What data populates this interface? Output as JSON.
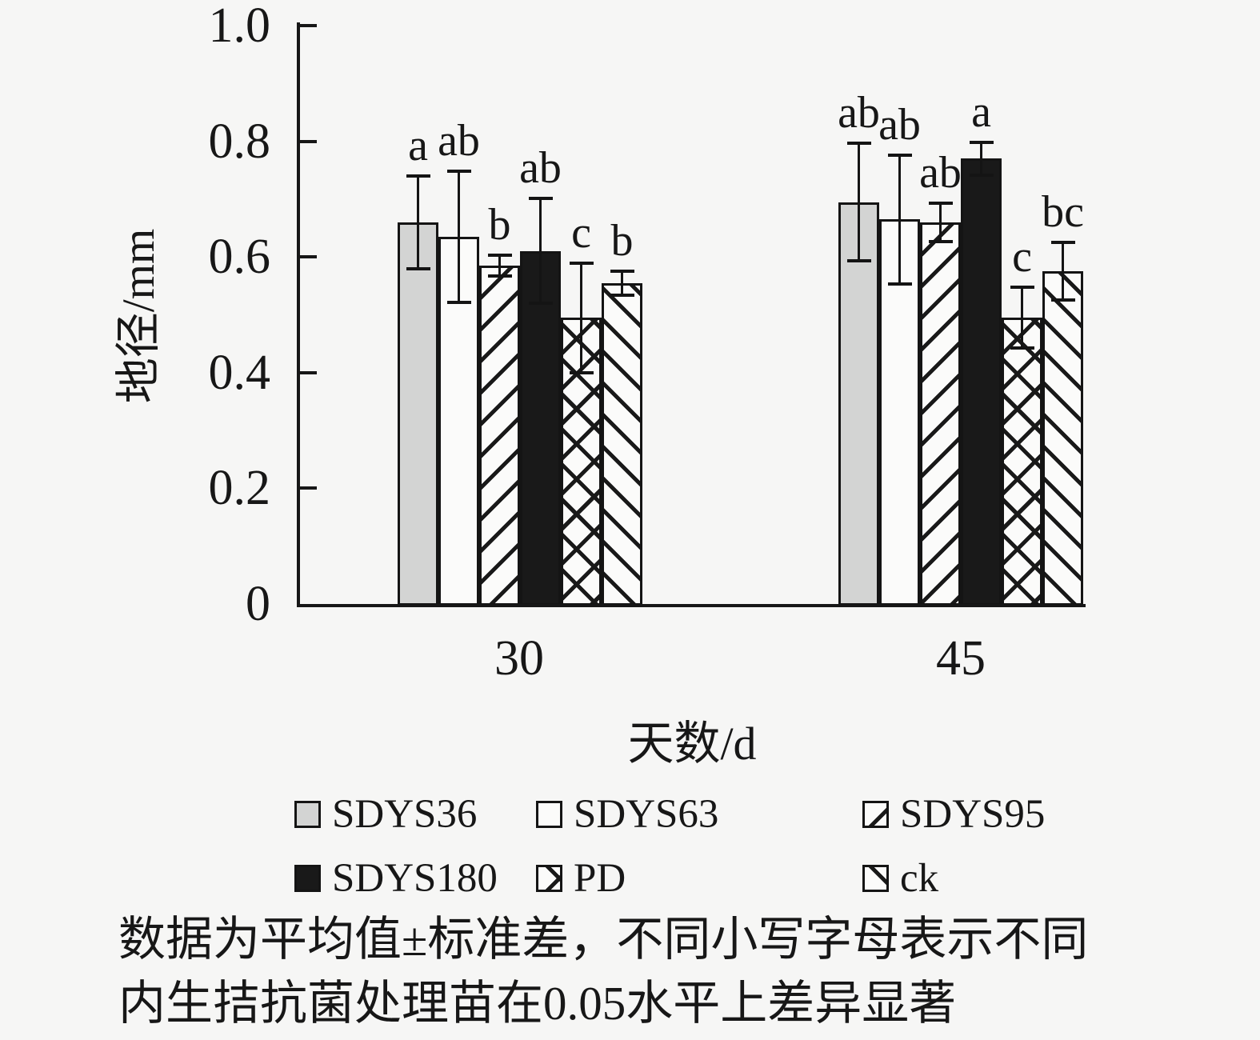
{
  "chart_data": {
    "type": "bar",
    "title": "",
    "xlabel": "天数/d",
    "ylabel": "地径/mm",
    "ylim": [
      0,
      1.0
    ],
    "yticks": [
      0,
      0.2,
      0.4,
      0.6,
      0.8,
      1.0
    ],
    "ytick_labels": [
      "0",
      "0.2",
      "0.4",
      "0.6",
      "0.8",
      "1.0"
    ],
    "categories": [
      "30",
      "45"
    ],
    "grid": false,
    "legend_position": "bottom",
    "error_bars": "±SD, capped",
    "series": [
      {
        "name": "SDYS36",
        "pattern": "solid-gray",
        "values": [
          0.66,
          0.695
        ],
        "errors": [
          0.082,
          0.103
        ],
        "letters": [
          "a",
          "ab"
        ]
      },
      {
        "name": "SDYS63",
        "pattern": "open",
        "values": [
          0.635,
          0.665
        ],
        "errors": [
          0.115,
          0.113
        ],
        "letters": [
          "ab",
          "ab"
        ]
      },
      {
        "name": "SDYS95",
        "pattern": "diag-up",
        "values": [
          0.585,
          0.66
        ],
        "errors": [
          0.019,
          0.035
        ],
        "letters": [
          "b",
          "ab"
        ]
      },
      {
        "name": "SDYS180",
        "pattern": "solid-black",
        "values": [
          0.61,
          0.77
        ],
        "errors": [
          0.092,
          0.03
        ],
        "letters": [
          "ab",
          "a"
        ]
      },
      {
        "name": "PD",
        "pattern": "cross",
        "values": [
          0.495,
          0.495
        ],
        "errors": [
          0.096,
          0.054
        ],
        "letters": [
          "c",
          "c"
        ]
      },
      {
        "name": "ck",
        "pattern": "diag-down",
        "values": [
          0.555,
          0.575
        ],
        "errors": [
          0.022,
          0.051
        ],
        "letters": [
          "b",
          "bc"
        ]
      }
    ]
  },
  "footnote": {
    "line1": "数据为平均值±标准差，不同小写字母表示不同",
    "line2": "内生拮抗菌处理苗在0.05水平上差异显著"
  },
  "colors": {
    "background": "#f6f6f5",
    "ink": "#171717",
    "bar_gray": "#d3d4d3",
    "bar_white": "#fbfbfa",
    "bar_black": "#191919"
  }
}
